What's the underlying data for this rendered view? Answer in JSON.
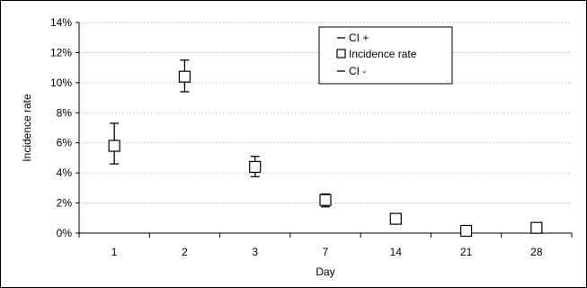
{
  "chart_data": {
    "type": "scatter",
    "title": "",
    "xlabel": "Day",
    "ylabel": "Incidence rate",
    "categories": [
      "1",
      "2",
      "3",
      "7",
      "14",
      "21",
      "28"
    ],
    "y_ticks": [
      "0%",
      "2%",
      "4%",
      "6%",
      "8%",
      "10%",
      "12%",
      "14%"
    ],
    "ylim": [
      0,
      0.14
    ],
    "grid": true,
    "legend_position": "top-right",
    "series": [
      {
        "name": "CI +",
        "values": [
          0.073,
          0.115,
          0.051,
          0.026,
          0.012,
          0.0035,
          0.005
        ]
      },
      {
        "name": "Incidence rate",
        "values": [
          0.058,
          0.104,
          0.044,
          0.022,
          0.0095,
          0.0015,
          0.0035
        ]
      },
      {
        "name": "CI -",
        "values": [
          0.046,
          0.094,
          0.0375,
          0.0175,
          0.007,
          0.0005,
          0.002
        ]
      }
    ]
  }
}
